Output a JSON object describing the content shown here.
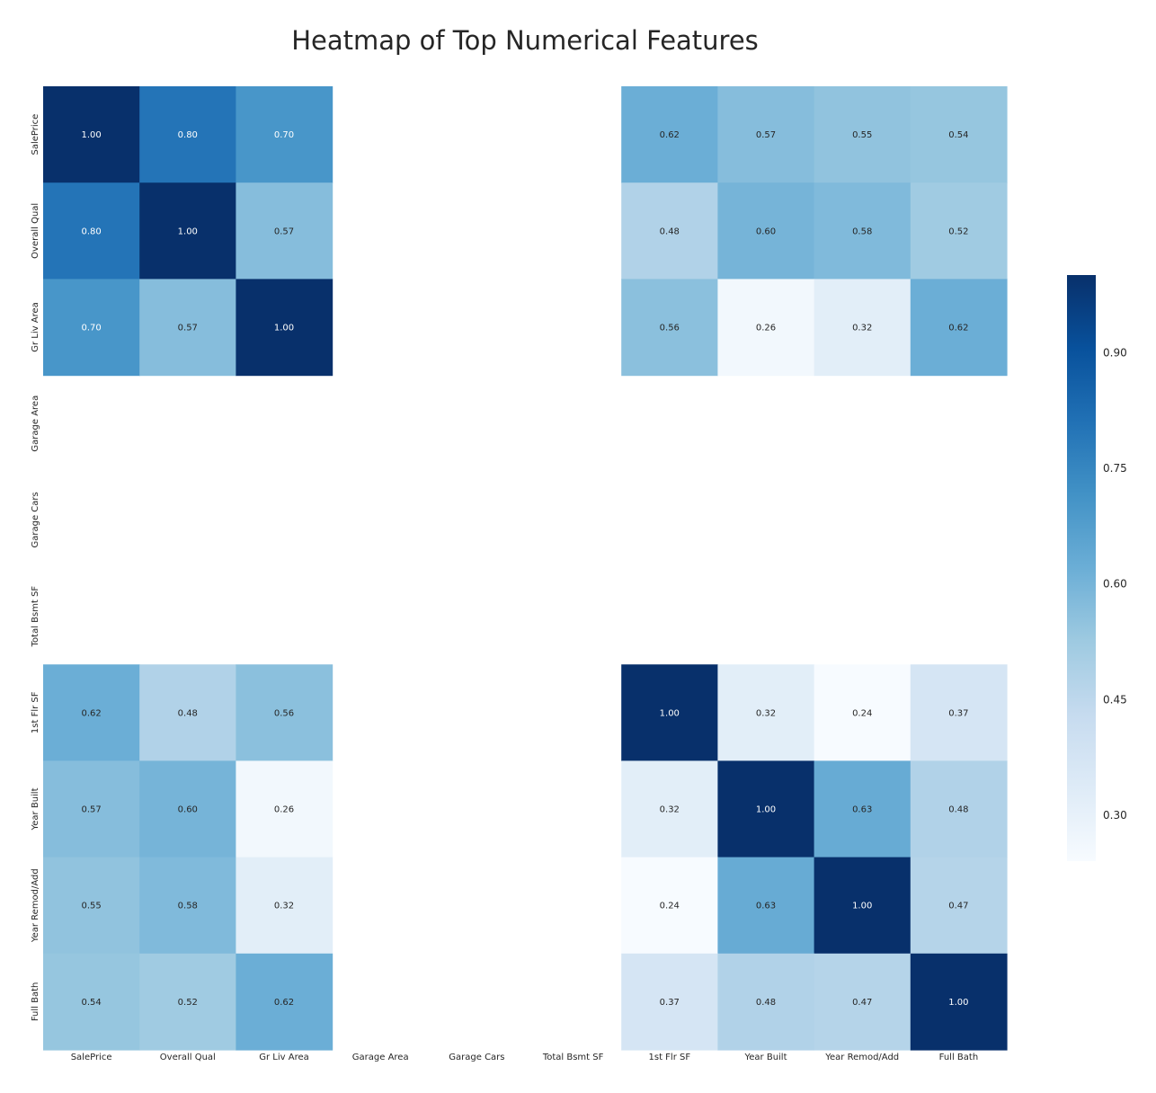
{
  "chart_data": {
    "type": "heatmap",
    "title": "Heatmap of Top Numerical Features",
    "labels": [
      "SalePrice",
      "Overall Qual",
      "Gr Liv Area",
      "Garage Area",
      "Garage Cars",
      "Total Bsmt SF",
      "1st Flr SF",
      "Year Built",
      "Year Remod/Add",
      "Full Bath"
    ],
    "values": [
      [
        1.0,
        0.8,
        0.7,
        null,
        null,
        null,
        0.62,
        0.57,
        0.55,
        0.54
      ],
      [
        0.8,
        1.0,
        0.57,
        null,
        null,
        null,
        0.48,
        0.6,
        0.58,
        0.52
      ],
      [
        0.7,
        0.57,
        1.0,
        null,
        null,
        null,
        0.56,
        0.26,
        0.32,
        0.62
      ],
      [
        null,
        null,
        null,
        null,
        null,
        null,
        null,
        null,
        null,
        null
      ],
      [
        null,
        null,
        null,
        null,
        null,
        null,
        null,
        null,
        null,
        null
      ],
      [
        null,
        null,
        null,
        null,
        null,
        null,
        null,
        null,
        null,
        null
      ],
      [
        0.62,
        0.48,
        0.56,
        null,
        null,
        null,
        1.0,
        0.32,
        0.24,
        0.37
      ],
      [
        0.57,
        0.6,
        0.26,
        null,
        null,
        null,
        0.32,
        1.0,
        0.63,
        0.48
      ],
      [
        0.55,
        0.58,
        0.32,
        null,
        null,
        null,
        0.24,
        0.63,
        1.0,
        0.47
      ],
      [
        0.54,
        0.52,
        0.62,
        null,
        null,
        null,
        0.37,
        0.48,
        0.47,
        1.0
      ]
    ],
    "annotation_format": "0.00",
    "colormap": "Blues",
    "vmin": 0.24,
    "vmax": 1.0,
    "colorbar_ticks": [
      0.3,
      0.45,
      0.6,
      0.75,
      0.9
    ],
    "colorbar_tick_labels": [
      "0.30",
      "0.45",
      "0.60",
      "0.75",
      "0.90"
    ],
    "grid": false,
    "colorbar_position": "right"
  }
}
